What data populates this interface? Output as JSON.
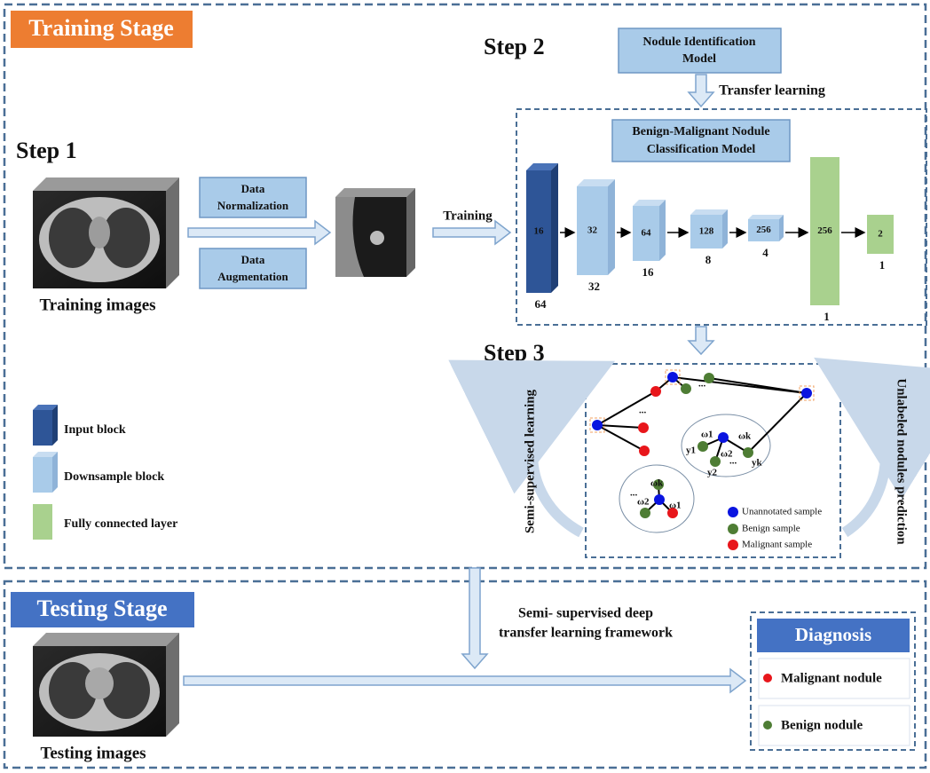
{
  "training_stage": {
    "title": "Training Stage",
    "step1": "Step 1",
    "step2": "Step 2",
    "step3": "Step 3",
    "training_images": "Training images",
    "data_normalization": [
      "Data",
      "Normalization"
    ],
    "data_augmentation": [
      "Data",
      "Augmentation"
    ],
    "training": "Training",
    "source_model": [
      "Nodule Identification",
      "Model"
    ],
    "transfer_learning": "Transfer learning",
    "target_model": [
      "Benign-Malignant Nodule",
      "Classification Model"
    ],
    "blocks": [
      {
        "channels": 16,
        "size": 64
      },
      {
        "channels": 32,
        "size": 32
      },
      {
        "channels": 64,
        "size": 16
      },
      {
        "channels": 128,
        "size": 8
      },
      {
        "channels": 256,
        "size": 4
      },
      {
        "channels": 256,
        "size": 1
      },
      {
        "channels": 2,
        "size": 1
      }
    ],
    "legend": [
      "Input block",
      "Downsample block",
      "Fully connected layer"
    ],
    "semi_supervised_learning": "Semi-supervised learning",
    "unlabeled_prediction": "Unlabeled  nodules prediction",
    "graph_labels": {
      "ellipsis": "...",
      "w1": "ω1",
      "wk": "ωk",
      "w2": "ω2",
      "y1": "y1",
      "y2": "y2",
      "yk": "yk"
    },
    "graph_legend": [
      "Unannotated  sample",
      "Benign  sample",
      "Malignant  sample"
    ]
  },
  "testing_stage": {
    "title": "Testing Stage",
    "testing_images": "Testing images",
    "framework": [
      "Semi- supervised  deep",
      "transfer learning framework"
    ],
    "diagnosis": "Diagnosis",
    "results": [
      "Malignant nodule",
      "Benign nodule"
    ]
  }
}
